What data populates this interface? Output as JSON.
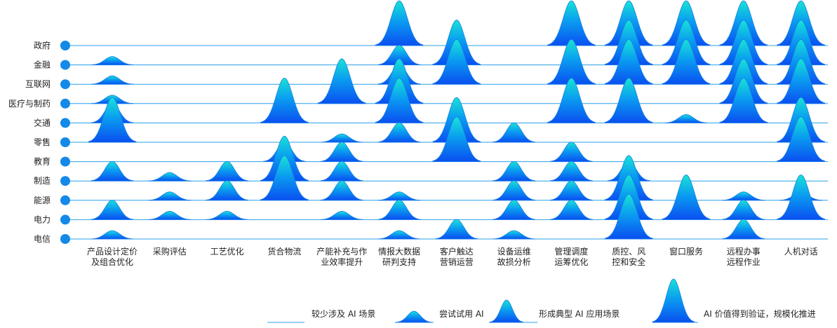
{
  "chart_data": {
    "type": "ridgeline",
    "rows": [
      "政府",
      "金融",
      "互联网",
      "医疗与制药",
      "交通",
      "零售",
      "教育",
      "制造",
      "能源",
      "电力",
      "电信"
    ],
    "columns": [
      [
        "产品设计定价",
        "及组合优化"
      ],
      [
        "采购评估"
      ],
      [
        "工艺优化"
      ],
      [
        "货合物流"
      ],
      [
        "产能补充与作",
        "业效率提升"
      ],
      [
        "情报大数据",
        "研判支持"
      ],
      [
        "客户触达",
        "营销运营"
      ],
      [
        "设备运维",
        "故损分析"
      ],
      [
        "管理调度",
        "运筹优化"
      ],
      [
        "质控、风",
        "控和安全"
      ],
      [
        "窗口服务"
      ],
      [
        "远程办事",
        "远程作业"
      ],
      [
        "人机对话"
      ]
    ],
    "levels": [
      [
        0,
        0,
        0,
        0,
        0,
        3,
        0,
        0,
        3,
        3,
        3,
        3,
        3
      ],
      [
        1,
        0,
        0,
        0,
        0,
        2,
        3,
        0,
        0,
        3,
        3,
        3,
        3
      ],
      [
        1,
        0,
        0,
        0,
        0,
        2,
        3,
        0,
        3,
        3,
        3,
        3,
        3
      ],
      [
        1,
        0,
        0,
        0,
        3,
        3,
        0,
        0,
        0,
        0,
        0,
        3,
        3
      ],
      [
        2,
        0,
        0,
        3,
        0,
        3,
        0,
        0,
        3,
        3,
        1,
        3,
        0
      ],
      [
        3,
        0,
        0,
        0,
        1,
        2,
        3,
        2,
        0,
        0,
        0,
        0,
        3
      ],
      [
        0,
        0,
        0,
        2,
        2,
        0,
        3,
        0,
        2,
        0,
        0,
        0,
        3
      ],
      [
        2,
        1,
        2,
        3,
        2,
        0,
        0,
        2,
        2,
        2,
        0,
        0,
        0
      ],
      [
        0,
        1,
        2,
        3,
        2,
        1,
        0,
        2,
        2,
        3,
        0,
        1,
        1
      ],
      [
        2,
        1,
        1,
        0,
        1,
        2,
        0,
        2,
        2,
        3,
        3,
        2,
        3
      ],
      [
        1,
        0,
        0,
        0,
        0,
        1,
        2,
        1,
        0,
        3,
        0,
        2,
        0
      ]
    ],
    "colors": {
      "base": "#0a4ff0",
      "mid": "#0a9ef0",
      "top": "#18e3d4",
      "line": "#2aa0ea",
      "dot": "#1589e8"
    },
    "legend": {
      "items": [
        {
          "level": 0,
          "label": "较少涉及 AI 场景"
        },
        {
          "level": 1,
          "label": "尝试试用 AI"
        },
        {
          "level": 2,
          "label": "形成典型 AI 应用场景"
        },
        {
          "level": 3,
          "label": "AI 价值得到验证，规模化推进"
        }
      ]
    }
  }
}
